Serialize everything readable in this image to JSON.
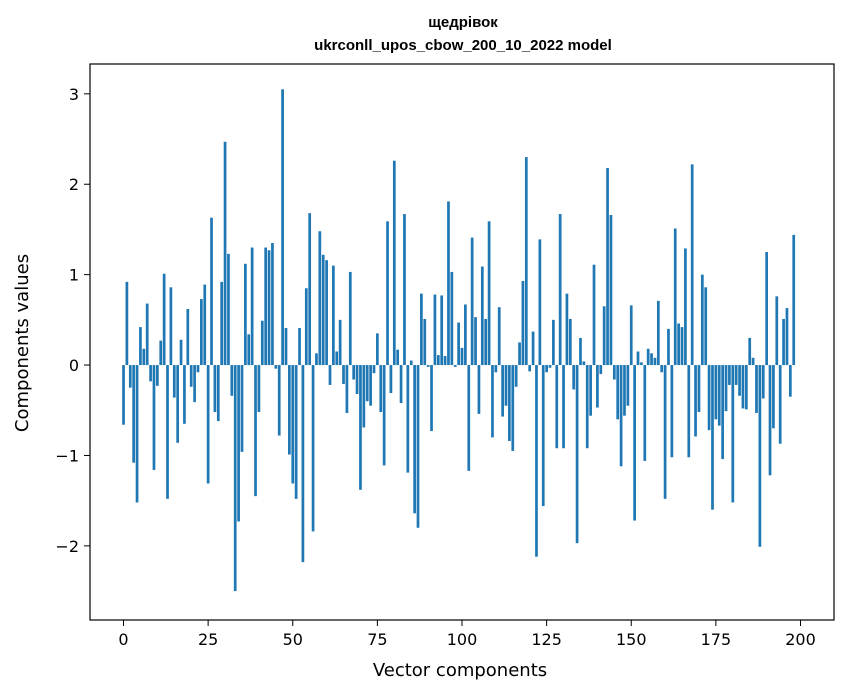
{
  "chart_data": {
    "type": "bar",
    "title": "щедрівок",
    "subtitle": "ukrconll_upos_cbow_200_10_2022 model",
    "xlabel": "Vector components",
    "ylabel": "Components values",
    "xlim": [
      -9.9,
      209.9
    ],
    "ylim": [
      -2.82,
      3.33
    ],
    "xticks": [
      0,
      25,
      50,
      75,
      100,
      125,
      150,
      175,
      200
    ],
    "yticks": [
      -2,
      -1,
      0,
      1,
      2,
      3
    ],
    "xtick_labels": [
      "0",
      "25",
      "50",
      "75",
      "100",
      "125",
      "150",
      "175",
      "200"
    ],
    "ytick_labels": [
      "−2",
      "−1",
      "0",
      "1",
      "2",
      "3"
    ],
    "grid": false,
    "color": "#1f77b4",
    "values": [
      -0.66,
      0.92,
      -0.25,
      -1.08,
      -1.52,
      0.42,
      0.18,
      0.68,
      -0.18,
      -1.16,
      -0.23,
      0.27,
      1.01,
      -1.48,
      0.86,
      -0.36,
      -0.86,
      0.28,
      -0.65,
      0.62,
      -0.24,
      -0.41,
      -0.08,
      0.73,
      0.89,
      -1.31,
      1.63,
      -0.52,
      -0.62,
      0.92,
      2.47,
      1.23,
      -0.34,
      -2.5,
      -1.73,
      -0.96,
      1.12,
      0.34,
      1.3,
      -1.45,
      -0.52,
      0.49,
      1.3,
      1.27,
      1.35,
      -0.04,
      -0.78,
      3.05,
      0.41,
      -0.99,
      -1.31,
      -1.48,
      0.41,
      -2.18,
      0.85,
      1.68,
      -1.84,
      0.13,
      1.48,
      1.22,
      1.16,
      -0.22,
      1.1,
      0.15,
      0.5,
      -0.21,
      -0.53,
      1.03,
      -0.16,
      -0.32,
      -1.38,
      -0.69,
      -0.4,
      -0.45,
      -0.09,
      0.35,
      -0.52,
      -1.11,
      1.59,
      -0.31,
      2.26,
      0.17,
      -0.42,
      1.67,
      -1.19,
      0.05,
      -1.64,
      -1.8,
      0.79,
      0.51,
      -0.02,
      -0.73,
      0.78,
      0.11,
      0.77,
      0.1,
      1.81,
      1.03,
      -0.02,
      0.47,
      0.19,
      0.67,
      -1.17,
      1.41,
      0.53,
      -0.54,
      1.09,
      0.51,
      1.59,
      -0.8,
      -0.08,
      0.64,
      -0.57,
      -0.45,
      -0.84,
      -0.95,
      -0.24,
      0.25,
      0.93,
      2.3,
      -0.07,
      0.37,
      -2.12,
      1.39,
      -1.56,
      -0.08,
      -0.03,
      0.5,
      -0.92,
      1.67,
      -0.92,
      0.79,
      0.51,
      -0.27,
      -1.97,
      0.3,
      0.04,
      -0.92,
      -0.56,
      1.11,
      -0.47,
      -0.1,
      0.65,
      2.18,
      1.66,
      -0.16,
      -0.6,
      -1.12,
      -0.56,
      -0.45,
      0.66,
      -1.72,
      0.15,
      0.03,
      -1.06,
      0.18,
      0.13,
      0.08,
      0.71,
      -0.08,
      -1.48,
      0.4,
      -1.02,
      1.51,
      0.46,
      0.42,
      1.29,
      -1.02,
      2.22,
      -0.79,
      -0.52,
      1.0,
      0.86,
      -0.72,
      -1.6,
      -0.6,
      -0.67,
      -1.04,
      -0.51,
      -0.22,
      -1.52,
      -0.22,
      -0.34,
      -0.48,
      -0.49,
      0.3,
      0.08,
      -0.53,
      -2.01,
      -0.37,
      1.25,
      -1.22,
      -0.7,
      0.76,
      -0.87,
      0.51,
      0.63,
      -0.35,
      1.44
    ]
  }
}
